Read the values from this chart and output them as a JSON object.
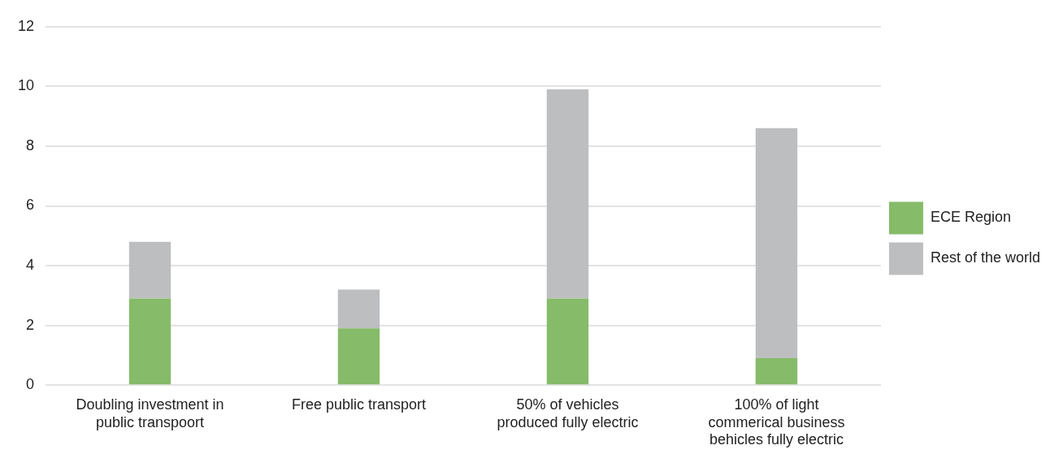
{
  "chart_data": {
    "type": "bar",
    "stacked": true,
    "categories": [
      "Doubling investment in public transpoort",
      "Free public transport",
      "50% of vehicles produced fully electric",
      "100% of light commerical business behicles fully electric"
    ],
    "series": [
      {
        "name": "ECE Region",
        "color": "#86bb6a",
        "values": [
          2.9,
          1.9,
          2.9,
          0.9
        ]
      },
      {
        "name": "Rest of the world",
        "color": "#bdbec0",
        "values": [
          1.9,
          1.3,
          7.0,
          7.7
        ]
      }
    ],
    "ylim": [
      0,
      12
    ],
    "yticks": [
      0,
      2,
      4,
      6,
      8,
      10,
      12
    ],
    "grid": "y",
    "legend": "right"
  }
}
